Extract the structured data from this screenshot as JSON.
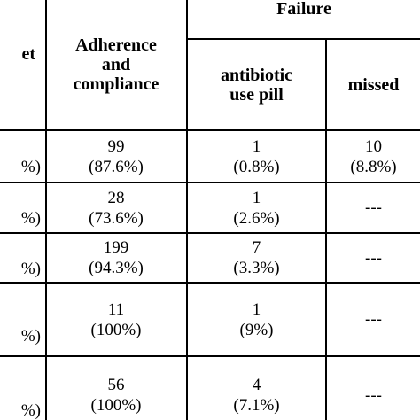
{
  "table": {
    "header": {
      "partial_first_col": "et",
      "adherence": [
        "Adherence",
        "and",
        "compliance"
      ],
      "failure": "Failure",
      "antibiotic": [
        "antibiotic",
        "use pill"
      ],
      "missed": "missed"
    },
    "rows": [
      {
        "partial_left": "%)",
        "adherence": [
          "99",
          "(87.6%)"
        ],
        "antibiotic": [
          "1",
          "(0.8%)"
        ],
        "missed": [
          "10",
          "(8.8%)"
        ]
      },
      {
        "partial_left": "%)",
        "adherence": [
          "28",
          "(73.6%)"
        ],
        "antibiotic": [
          "1",
          "(2.6%)"
        ],
        "missed": [
          "---"
        ]
      },
      {
        "partial_left": "%)",
        "adherence": [
          "199",
          "(94.3%)"
        ],
        "antibiotic": [
          "7",
          "(3.3%)"
        ],
        "missed": [
          "---"
        ]
      },
      {
        "partial_left": "%)",
        "adherence": [
          "11",
          "(100%)"
        ],
        "antibiotic": [
          "1",
          "(9%)"
        ],
        "missed": [
          "---"
        ]
      },
      {
        "partial_left": "%)",
        "adherence": [
          "56",
          "(100%)"
        ],
        "antibiotic": [
          "4",
          "(7.1%)"
        ],
        "missed": [
          "---"
        ]
      }
    ]
  }
}
